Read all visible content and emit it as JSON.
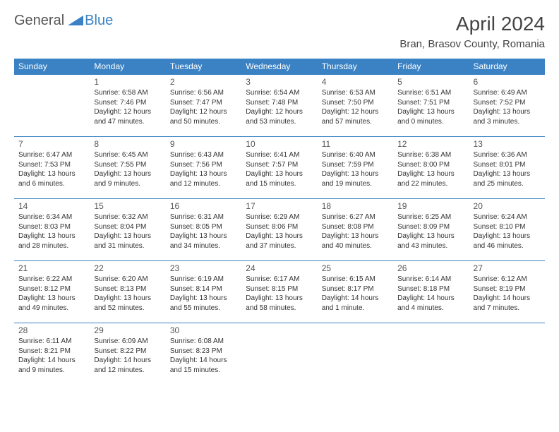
{
  "logo": {
    "text1": "General",
    "text2": "Blue"
  },
  "title": "April 2024",
  "location": "Bran, Brasov County, Romania",
  "colors": {
    "header_bg": "#3b82c4",
    "header_text": "#ffffff",
    "cell_border": "#3b82c4",
    "page_bg": "#ffffff",
    "body_text": "#333333",
    "logo_gray": "#555555",
    "logo_blue": "#3b82c4"
  },
  "weekdays": [
    "Sunday",
    "Monday",
    "Tuesday",
    "Wednesday",
    "Thursday",
    "Friday",
    "Saturday"
  ],
  "weeks": [
    [
      null,
      {
        "num": "1",
        "sunrise": "6:58 AM",
        "sunset": "7:46 PM",
        "daylight": "12 hours and 47 minutes."
      },
      {
        "num": "2",
        "sunrise": "6:56 AM",
        "sunset": "7:47 PM",
        "daylight": "12 hours and 50 minutes."
      },
      {
        "num": "3",
        "sunrise": "6:54 AM",
        "sunset": "7:48 PM",
        "daylight": "12 hours and 53 minutes."
      },
      {
        "num": "4",
        "sunrise": "6:53 AM",
        "sunset": "7:50 PM",
        "daylight": "12 hours and 57 minutes."
      },
      {
        "num": "5",
        "sunrise": "6:51 AM",
        "sunset": "7:51 PM",
        "daylight": "13 hours and 0 minutes."
      },
      {
        "num": "6",
        "sunrise": "6:49 AM",
        "sunset": "7:52 PM",
        "daylight": "13 hours and 3 minutes."
      }
    ],
    [
      {
        "num": "7",
        "sunrise": "6:47 AM",
        "sunset": "7:53 PM",
        "daylight": "13 hours and 6 minutes."
      },
      {
        "num": "8",
        "sunrise": "6:45 AM",
        "sunset": "7:55 PM",
        "daylight": "13 hours and 9 minutes."
      },
      {
        "num": "9",
        "sunrise": "6:43 AM",
        "sunset": "7:56 PM",
        "daylight": "13 hours and 12 minutes."
      },
      {
        "num": "10",
        "sunrise": "6:41 AM",
        "sunset": "7:57 PM",
        "daylight": "13 hours and 15 minutes."
      },
      {
        "num": "11",
        "sunrise": "6:40 AM",
        "sunset": "7:59 PM",
        "daylight": "13 hours and 19 minutes."
      },
      {
        "num": "12",
        "sunrise": "6:38 AM",
        "sunset": "8:00 PM",
        "daylight": "13 hours and 22 minutes."
      },
      {
        "num": "13",
        "sunrise": "6:36 AM",
        "sunset": "8:01 PM",
        "daylight": "13 hours and 25 minutes."
      }
    ],
    [
      {
        "num": "14",
        "sunrise": "6:34 AM",
        "sunset": "8:03 PM",
        "daylight": "13 hours and 28 minutes."
      },
      {
        "num": "15",
        "sunrise": "6:32 AM",
        "sunset": "8:04 PM",
        "daylight": "13 hours and 31 minutes."
      },
      {
        "num": "16",
        "sunrise": "6:31 AM",
        "sunset": "8:05 PM",
        "daylight": "13 hours and 34 minutes."
      },
      {
        "num": "17",
        "sunrise": "6:29 AM",
        "sunset": "8:06 PM",
        "daylight": "13 hours and 37 minutes."
      },
      {
        "num": "18",
        "sunrise": "6:27 AM",
        "sunset": "8:08 PM",
        "daylight": "13 hours and 40 minutes."
      },
      {
        "num": "19",
        "sunrise": "6:25 AM",
        "sunset": "8:09 PM",
        "daylight": "13 hours and 43 minutes."
      },
      {
        "num": "20",
        "sunrise": "6:24 AM",
        "sunset": "8:10 PM",
        "daylight": "13 hours and 46 minutes."
      }
    ],
    [
      {
        "num": "21",
        "sunrise": "6:22 AM",
        "sunset": "8:12 PM",
        "daylight": "13 hours and 49 minutes."
      },
      {
        "num": "22",
        "sunrise": "6:20 AM",
        "sunset": "8:13 PM",
        "daylight": "13 hours and 52 minutes."
      },
      {
        "num": "23",
        "sunrise": "6:19 AM",
        "sunset": "8:14 PM",
        "daylight": "13 hours and 55 minutes."
      },
      {
        "num": "24",
        "sunrise": "6:17 AM",
        "sunset": "8:15 PM",
        "daylight": "13 hours and 58 minutes."
      },
      {
        "num": "25",
        "sunrise": "6:15 AM",
        "sunset": "8:17 PM",
        "daylight": "14 hours and 1 minute."
      },
      {
        "num": "26",
        "sunrise": "6:14 AM",
        "sunset": "8:18 PM",
        "daylight": "14 hours and 4 minutes."
      },
      {
        "num": "27",
        "sunrise": "6:12 AM",
        "sunset": "8:19 PM",
        "daylight": "14 hours and 7 minutes."
      }
    ],
    [
      {
        "num": "28",
        "sunrise": "6:11 AM",
        "sunset": "8:21 PM",
        "daylight": "14 hours and 9 minutes."
      },
      {
        "num": "29",
        "sunrise": "6:09 AM",
        "sunset": "8:22 PM",
        "daylight": "14 hours and 12 minutes."
      },
      {
        "num": "30",
        "sunrise": "6:08 AM",
        "sunset": "8:23 PM",
        "daylight": "14 hours and 15 minutes."
      },
      null,
      null,
      null,
      null
    ]
  ],
  "labels": {
    "sunrise": "Sunrise:",
    "sunset": "Sunset:",
    "daylight": "Daylight:"
  }
}
